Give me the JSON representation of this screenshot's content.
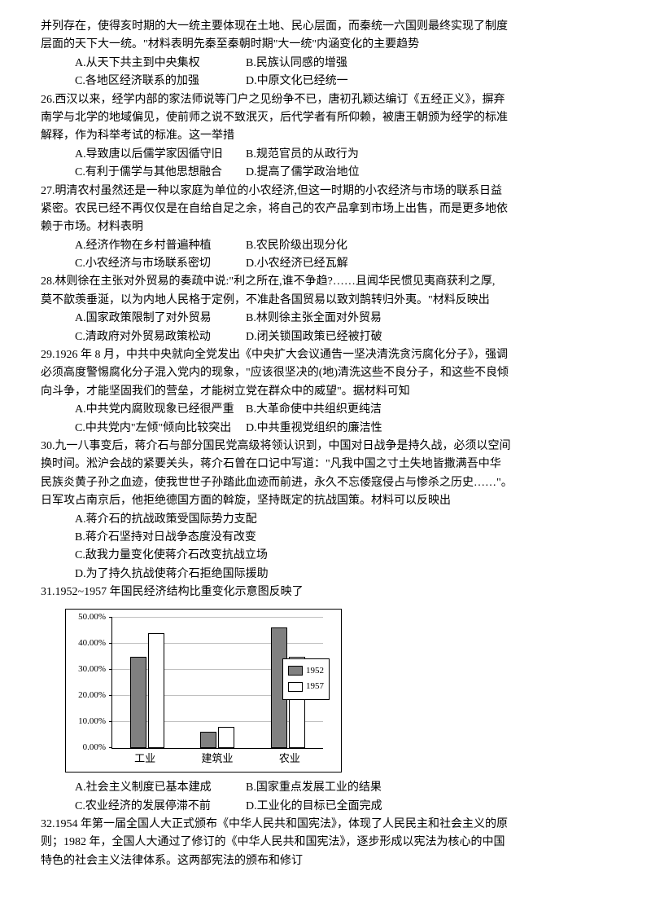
{
  "intro_cont": {
    "l1": "并列存在，使得亥时期的大一统主要体现在土地、民心层面，而秦统一六国则最终实现了制度",
    "l2": "层面的天下大一统。\"材料表明先秦至秦朝时期\"大一统\"内涵变化的主要趋势",
    "opts": {
      "a": "A.从天下共主到中央集权",
      "b": "B.民族认同感的增强",
      "c": "C.各地区经济联系的加强",
      "d": "D.中原文化已经统一"
    }
  },
  "q26": {
    "l1": "26.西汉以来，经学内部的家法师说等门户之见纷争不已，唐初孔颖达编订《五经正义》，摒弃",
    "l2": "南学与北学的地域偏见，使前师之说不致泯灭，后代学者有所仰赖，被唐王朝颁为经学的标准",
    "l3": "解释，作为科举考试的标准。这一举措",
    "opts": {
      "a": "A.导致唐以后儒学家因循守旧",
      "b": "B.规范官员的从政行为",
      "c": "C.有利于儒学与其他思想融合",
      "d": "D.提高了儒学政治地位"
    }
  },
  "q27": {
    "l1": "27.明清农村虽然还是一种以家庭为单位的小农经济,但这一时期的小农经济与市场的联系日益",
    "l2": "紧密。农民已经不再仅仅是在自给自足之余，将自己的农产品拿到市场上出售，而是更多地依",
    "l3": "赖于市场。材料表明",
    "opts": {
      "a": "A.经济作物在乡村普遍种植",
      "b": "B.农民阶级出现分化",
      "c": "C.小农经济与市场联系密切",
      "d": "D.小农经济已经瓦解"
    }
  },
  "q28": {
    "l1": "28.林则徐在主张对外贸易的奏疏中说:\"利之所在,谁不争趋?……且闻华民惯见夷商获利之厚,",
    "l2": "莫不歆羡垂涎，以为内地人民格于定例，不准赴各国贸易以致刘鹄转归外夷。\"材料反映出",
    "opts": {
      "a": "A.国家政策限制了对外贸易",
      "b": "B.林则徐主张全面对外贸易",
      "c": "C.清政府对外贸易政策松动",
      "d": "D.闭关锁国政策已经被打破"
    }
  },
  "q29": {
    "l1": "29.1926 年 8 月，中共中央就向全党发出《中央扩大会议通告一坚决清洗贪污腐化分子》，强调",
    "l2": "必须高度警惕腐化分子混入党内的现象，\"应该很坚决的(地)清洗这些不良分子，和这些不良倾",
    "l3": "向斗争，才能坚固我们的营垒，才能树立党在群众中的威望\"。据材料可知",
    "opts": {
      "a": "A.中共党内腐败现象已经很严重",
      "b": "B.大革命使中共组织更纯洁",
      "c": "C.中共党内\"左倾\"倾向比较突出",
      "d": "D.中共重视党组织的廉洁性"
    }
  },
  "q30": {
    "l1": "30.九一八事变后，蒋介石与部分国民党高级将领认识到，中国对日战争是持久战，必须以空间",
    "l2": "换时间。淞沪会战的紧要关头，蒋介石曾在口记中写道：\"凡我中国之寸土失地皆撒满吾中华",
    "l3": "民族炎黄子孙之血迹，使我世世子孙踏此血迹而前进，永久不忘倭寇侵占与惨杀之历史……\"。",
    "l4": "日军攻占南京后，他拒绝德国方面的斡旋，坚持既定的抗战国策。材料可以反映出",
    "opts": {
      "a": "A.蒋介石的抗战政策受国际势力支配",
      "b": "B.蒋介石坚持对日战争态度没有改变",
      "c": "C.敌我力量变化使蒋介石改变抗战立场",
      "d": "D.为了持久抗战使蒋介石拒绝国际援助"
    }
  },
  "q31": {
    "stem": "31.1952~1957 年国民经济结构比重变化示意图反映了",
    "chart": {
      "type": "bar",
      "ymax": 50,
      "ytick_step": 10,
      "yticks": [
        "0.00%",
        "10.00%",
        "20.00%",
        "30.00%",
        "40.00%",
        "50.00%"
      ],
      "categories": [
        "工业",
        "建筑业",
        "农业"
      ],
      "series": [
        {
          "name": "1952",
          "fill": "#808080",
          "values": [
            35,
            6,
            46
          ]
        },
        {
          "name": "1957",
          "fill": "#ffffff",
          "values": [
            44,
            8,
            35
          ]
        }
      ],
      "legend": [
        "1952",
        "1957"
      ]
    },
    "opts": {
      "a": "A.社会主义制度已基本建成",
      "b": "B.国家重点发展工业的结果",
      "c": "C.农业经济的发展停滞不前",
      "d": "D.工业化的目标已全面完成"
    }
  },
  "q32": {
    "l1": "32.1954 年第一届全国人大正式颁布《中华人民共和国宪法》，体现了人民民主和社会主义的原",
    "l2": "则；1982 年，全国人大通过了修订的《中华人民共和国宪法》，逐步形成以宪法为核心的中国",
    "l3": "特色的社会主义法律体系。这两部宪法的颁布和修订"
  }
}
